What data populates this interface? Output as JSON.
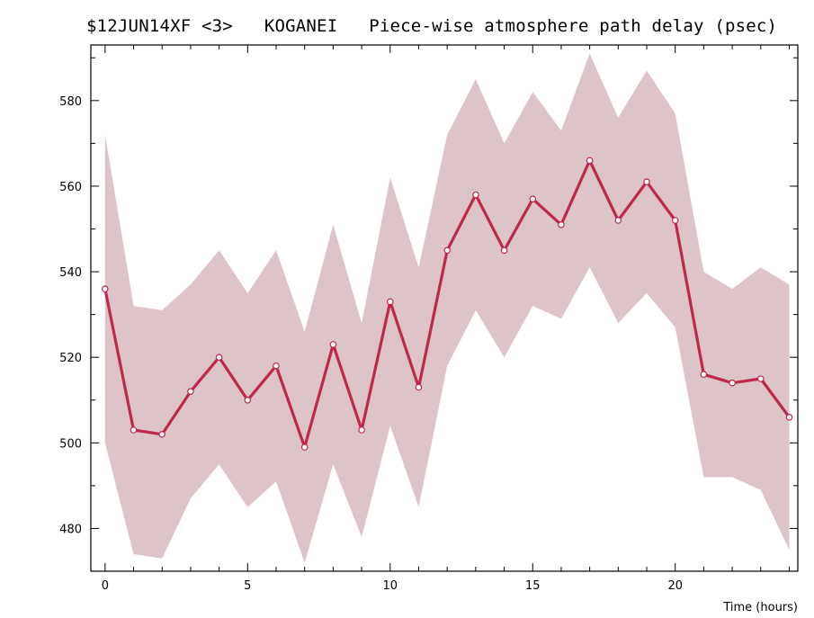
{
  "chart_data": {
    "type": "line",
    "title": "$12JUN14XF <3>   KOGANEI   Piece-wise atmosphere path delay (psec)",
    "xlabel": "Time (hours)",
    "ylabel": "",
    "xlim": [
      -0.5,
      24.3
    ],
    "ylim": [
      470,
      593
    ],
    "xticks": [
      0,
      5,
      10,
      15,
      20
    ],
    "yticks": [
      480,
      500,
      520,
      540,
      560,
      580
    ],
    "x": [
      0,
      1,
      2,
      3,
      4,
      5,
      6,
      7,
      8,
      9,
      10,
      11,
      12,
      13,
      14,
      15,
      16,
      17,
      18,
      19,
      20,
      21,
      22,
      23,
      24
    ],
    "series": [
      {
        "values": [
          536,
          503,
          502,
          512,
          520,
          510,
          518,
          499,
          523,
          503,
          533,
          513,
          545,
          558,
          545,
          557,
          551,
          566,
          552,
          561,
          552,
          516,
          514,
          515,
          506
        ],
        "color": "#c0284a"
      }
    ],
    "band": {
      "upper": [
        572,
        532,
        531,
        537,
        545,
        535,
        545,
        526,
        551,
        528,
        562,
        541,
        572,
        585,
        570,
        582,
        573,
        591,
        576,
        587,
        577,
        540,
        536,
        541,
        537
      ],
      "lower": [
        500,
        474,
        473,
        487,
        495,
        485,
        491,
        472,
        495,
        478,
        504,
        485,
        518,
        531,
        520,
        532,
        529,
        541,
        528,
        535,
        527,
        492,
        492,
        489,
        475
      ],
      "color": "#dcc4c8"
    },
    "grid": false,
    "legend": "none"
  }
}
